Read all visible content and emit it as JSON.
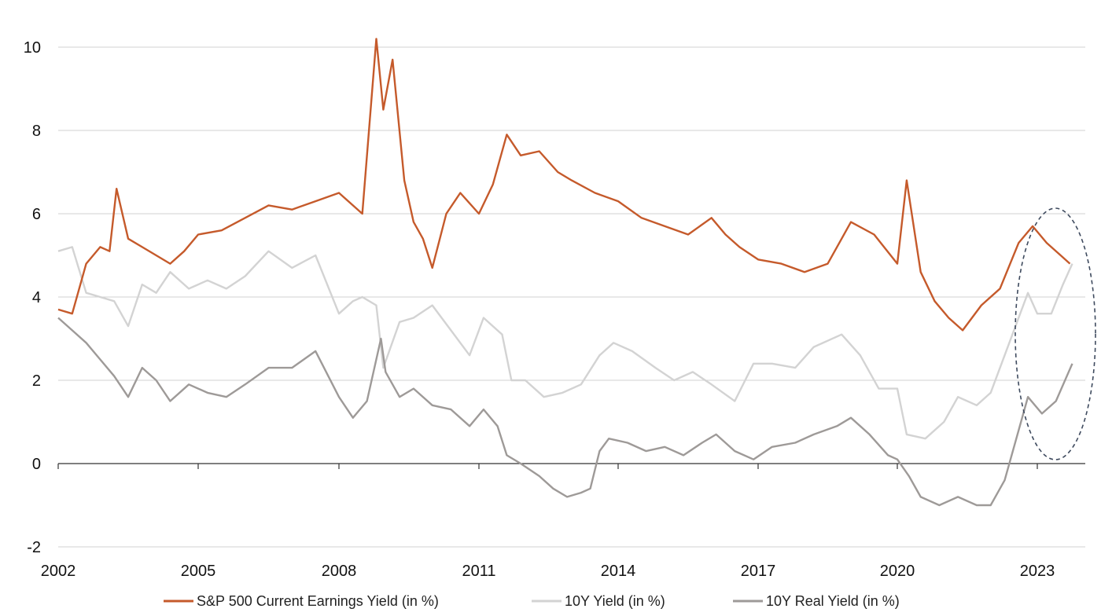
{
  "chart_data": {
    "type": "line",
    "title": "",
    "xlabel": "",
    "ylabel": "",
    "ylim": [
      -2,
      10.5
    ],
    "yticks": [
      "-2",
      "0",
      "2",
      "4",
      "6",
      "8",
      "10"
    ],
    "xticks": [
      "2002",
      "2005",
      "2008",
      "2011",
      "2014",
      "2017",
      "2020",
      "2023"
    ],
    "grid": "horizontal",
    "legend_position": "bottom",
    "annotation": "dashed ellipse highlighting 2023",
    "series": [
      {
        "name": "S&P 500 Current Earnings Yield (in %)",
        "color": "#C55A2B",
        "points": [
          [
            2002.0,
            3.7
          ],
          [
            2002.3,
            3.6
          ],
          [
            2002.6,
            4.8
          ],
          [
            2002.9,
            5.2
          ],
          [
            2003.1,
            5.1
          ],
          [
            2003.25,
            6.6
          ],
          [
            2003.5,
            5.4
          ],
          [
            2003.8,
            5.2
          ],
          [
            2004.1,
            5.0
          ],
          [
            2004.4,
            4.8
          ],
          [
            2004.7,
            5.1
          ],
          [
            2005.0,
            5.5
          ],
          [
            2005.5,
            5.6
          ],
          [
            2006.0,
            5.9
          ],
          [
            2006.5,
            6.2
          ],
          [
            2007.0,
            6.1
          ],
          [
            2007.5,
            6.3
          ],
          [
            2008.0,
            6.5
          ],
          [
            2008.5,
            6.0
          ],
          [
            2008.8,
            10.2
          ],
          [
            2008.95,
            8.5
          ],
          [
            2009.15,
            9.7
          ],
          [
            2009.4,
            6.8
          ],
          [
            2009.6,
            5.8
          ],
          [
            2009.8,
            5.4
          ],
          [
            2010.0,
            4.7
          ],
          [
            2010.3,
            6.0
          ],
          [
            2010.6,
            6.5
          ],
          [
            2011.0,
            6.0
          ],
          [
            2011.3,
            6.7
          ],
          [
            2011.6,
            7.9
          ],
          [
            2011.9,
            7.4
          ],
          [
            2012.3,
            7.5
          ],
          [
            2012.7,
            7.0
          ],
          [
            2013.0,
            6.8
          ],
          [
            2013.5,
            6.5
          ],
          [
            2014.0,
            6.3
          ],
          [
            2014.5,
            5.9
          ],
          [
            2015.0,
            5.7
          ],
          [
            2015.5,
            5.5
          ],
          [
            2016.0,
            5.9
          ],
          [
            2016.3,
            5.5
          ],
          [
            2016.6,
            5.2
          ],
          [
            2017.0,
            4.9
          ],
          [
            2017.5,
            4.8
          ],
          [
            2018.0,
            4.6
          ],
          [
            2018.5,
            4.8
          ],
          [
            2018.8,
            5.4
          ],
          [
            2019.0,
            5.8
          ],
          [
            2019.5,
            5.5
          ],
          [
            2020.0,
            4.8
          ],
          [
            2020.2,
            6.8
          ],
          [
            2020.5,
            4.6
          ],
          [
            2020.8,
            3.9
          ],
          [
            2021.1,
            3.5
          ],
          [
            2021.4,
            3.2
          ],
          [
            2021.8,
            3.8
          ],
          [
            2022.2,
            4.2
          ],
          [
            2022.6,
            5.3
          ],
          [
            2022.9,
            5.7
          ],
          [
            2023.2,
            5.3
          ],
          [
            2023.5,
            5.0
          ],
          [
            2023.7,
            4.8
          ]
        ]
      },
      {
        "name": "10Y Yield (in %)",
        "color": "#D3D3D3",
        "points": [
          [
            2002.0,
            5.1
          ],
          [
            2002.3,
            5.2
          ],
          [
            2002.6,
            4.1
          ],
          [
            2002.9,
            4.0
          ],
          [
            2003.2,
            3.9
          ],
          [
            2003.5,
            3.3
          ],
          [
            2003.8,
            4.3
          ],
          [
            2004.1,
            4.1
          ],
          [
            2004.4,
            4.6
          ],
          [
            2004.8,
            4.2
          ],
          [
            2005.2,
            4.4
          ],
          [
            2005.6,
            4.2
          ],
          [
            2006.0,
            4.5
          ],
          [
            2006.5,
            5.1
          ],
          [
            2007.0,
            4.7
          ],
          [
            2007.5,
            5.0
          ],
          [
            2008.0,
            3.6
          ],
          [
            2008.3,
            3.9
          ],
          [
            2008.5,
            4.0
          ],
          [
            2008.8,
            3.8
          ],
          [
            2008.95,
            2.3
          ],
          [
            2009.3,
            3.4
          ],
          [
            2009.6,
            3.5
          ],
          [
            2010.0,
            3.8
          ],
          [
            2010.4,
            3.2
          ],
          [
            2010.8,
            2.6
          ],
          [
            2011.1,
            3.5
          ],
          [
            2011.5,
            3.1
          ],
          [
            2011.7,
            2.0
          ],
          [
            2012.0,
            2.0
          ],
          [
            2012.4,
            1.6
          ],
          [
            2012.8,
            1.7
          ],
          [
            2013.2,
            1.9
          ],
          [
            2013.6,
            2.6
          ],
          [
            2013.9,
            2.9
          ],
          [
            2014.3,
            2.7
          ],
          [
            2014.8,
            2.3
          ],
          [
            2015.2,
            2.0
          ],
          [
            2015.6,
            2.2
          ],
          [
            2016.0,
            1.9
          ],
          [
            2016.5,
            1.5
          ],
          [
            2016.9,
            2.4
          ],
          [
            2017.3,
            2.4
          ],
          [
            2017.8,
            2.3
          ],
          [
            2018.2,
            2.8
          ],
          [
            2018.8,
            3.1
          ],
          [
            2019.2,
            2.6
          ],
          [
            2019.6,
            1.8
          ],
          [
            2020.0,
            1.8
          ],
          [
            2020.2,
            0.7
          ],
          [
            2020.6,
            0.6
          ],
          [
            2021.0,
            1.0
          ],
          [
            2021.3,
            1.6
          ],
          [
            2021.7,
            1.4
          ],
          [
            2022.0,
            1.7
          ],
          [
            2022.4,
            2.9
          ],
          [
            2022.8,
            4.1
          ],
          [
            2023.0,
            3.6
          ],
          [
            2023.3,
            3.6
          ],
          [
            2023.55,
            4.3
          ],
          [
            2023.75,
            4.8
          ]
        ]
      },
      {
        "name": "10Y Real Yield (in %)",
        "color": "#9E9A98",
        "points": [
          [
            2002.0,
            3.5
          ],
          [
            2002.3,
            3.2
          ],
          [
            2002.6,
            2.9
          ],
          [
            2002.9,
            2.5
          ],
          [
            2003.2,
            2.1
          ],
          [
            2003.5,
            1.6
          ],
          [
            2003.8,
            2.3
          ],
          [
            2004.1,
            2.0
          ],
          [
            2004.4,
            1.5
          ],
          [
            2004.8,
            1.9
          ],
          [
            2005.2,
            1.7
          ],
          [
            2005.6,
            1.6
          ],
          [
            2006.0,
            1.9
          ],
          [
            2006.5,
            2.3
          ],
          [
            2007.0,
            2.3
          ],
          [
            2007.5,
            2.7
          ],
          [
            2008.0,
            1.6
          ],
          [
            2008.3,
            1.1
          ],
          [
            2008.6,
            1.5
          ],
          [
            2008.9,
            3.0
          ],
          [
            2009.0,
            2.2
          ],
          [
            2009.3,
            1.6
          ],
          [
            2009.6,
            1.8
          ],
          [
            2010.0,
            1.4
          ],
          [
            2010.4,
            1.3
          ],
          [
            2010.8,
            0.9
          ],
          [
            2011.1,
            1.3
          ],
          [
            2011.4,
            0.9
          ],
          [
            2011.6,
            0.2
          ],
          [
            2011.9,
            0.0
          ],
          [
            2012.3,
            -0.3
          ],
          [
            2012.6,
            -0.6
          ],
          [
            2012.9,
            -0.8
          ],
          [
            2013.2,
            -0.7
          ],
          [
            2013.4,
            -0.6
          ],
          [
            2013.6,
            0.3
          ],
          [
            2013.8,
            0.6
          ],
          [
            2014.2,
            0.5
          ],
          [
            2014.6,
            0.3
          ],
          [
            2015.0,
            0.4
          ],
          [
            2015.4,
            0.2
          ],
          [
            2015.8,
            0.5
          ],
          [
            2016.1,
            0.7
          ],
          [
            2016.5,
            0.3
          ],
          [
            2016.9,
            0.1
          ],
          [
            2017.3,
            0.4
          ],
          [
            2017.8,
            0.5
          ],
          [
            2018.2,
            0.7
          ],
          [
            2018.7,
            0.9
          ],
          [
            2019.0,
            1.1
          ],
          [
            2019.4,
            0.7
          ],
          [
            2019.8,
            0.2
          ],
          [
            2020.0,
            0.1
          ],
          [
            2020.25,
            -0.3
          ],
          [
            2020.5,
            -0.8
          ],
          [
            2020.9,
            -1.0
          ],
          [
            2021.3,
            -0.8
          ],
          [
            2021.7,
            -1.0
          ],
          [
            2022.0,
            -1.0
          ],
          [
            2022.3,
            -0.4
          ],
          [
            2022.6,
            0.8
          ],
          [
            2022.8,
            1.6
          ],
          [
            2023.1,
            1.2
          ],
          [
            2023.4,
            1.5
          ],
          [
            2023.75,
            2.4
          ]
        ]
      }
    ]
  }
}
